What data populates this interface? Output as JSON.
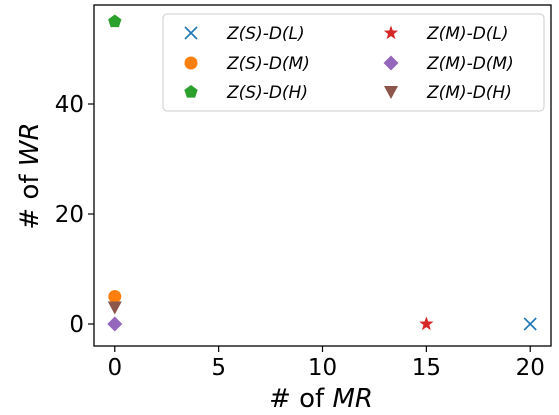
{
  "chart_data": {
    "type": "scatter",
    "xlabel_prefix": "# of ",
    "xlabel_var": "MR",
    "ylabel_prefix": "# of ",
    "ylabel_var": "WR",
    "xlim": [
      -1,
      21
    ],
    "ylim": [
      -4,
      58
    ],
    "xticks": [
      0,
      5,
      10,
      15,
      20
    ],
    "yticks": [
      0,
      20,
      40
    ],
    "grid": false,
    "legend_position": "top-right",
    "legend_columns": 2,
    "series": [
      {
        "name": "Z(S)-D(L)",
        "marker": "x",
        "color": "#1f77b4",
        "points": [
          {
            "x": 20,
            "y": 0
          }
        ]
      },
      {
        "name": "Z(S)-D(M)",
        "marker": "circle",
        "color": "#ff7f0e",
        "points": [
          {
            "x": 0,
            "y": 5
          }
        ]
      },
      {
        "name": "Z(S)-D(H)",
        "marker": "pentagon",
        "color": "#2ca02c",
        "points": [
          {
            "x": 0,
            "y": 55
          }
        ]
      },
      {
        "name": "Z(M)-D(L)",
        "marker": "star",
        "color": "#d62728",
        "points": [
          {
            "x": 15,
            "y": 0
          }
        ]
      },
      {
        "name": "Z(M)-D(M)",
        "marker": "diamond",
        "color": "#9467bd",
        "points": [
          {
            "x": 0,
            "y": 0
          }
        ]
      },
      {
        "name": "Z(M)-D(H)",
        "marker": "triangle-down",
        "color": "#8c564b",
        "points": [
          {
            "x": 0,
            "y": 3
          }
        ]
      }
    ]
  }
}
